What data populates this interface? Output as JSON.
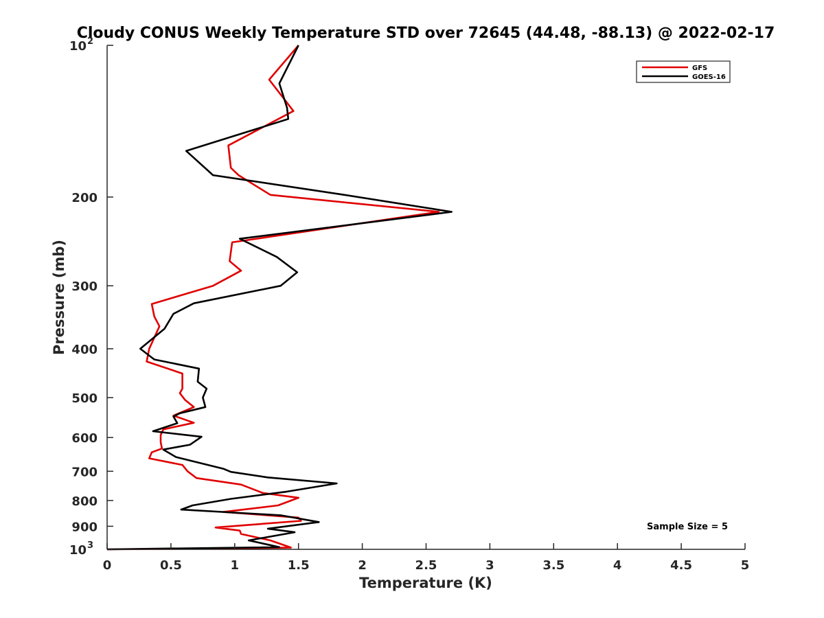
{
  "chart_data": {
    "type": "line",
    "title": "Cloudy CONUS Weekly Temperature STD over 72645 (44.48, -88.13) @ 2022-02-17",
    "xlabel": "Temperature (K)",
    "ylabel": "Pressure (mb)",
    "xlim": [
      0,
      5
    ],
    "ylim": [
      100,
      1000
    ],
    "yscale": "log",
    "y_reversed": true,
    "xticks": [
      "0",
      "0.5",
      "1",
      "1.5",
      "2",
      "2.5",
      "3",
      "3.5",
      "4",
      "4.5",
      "5"
    ],
    "xtick_values": [
      0,
      0.5,
      1,
      1.5,
      2,
      2.5,
      3,
      3.5,
      4,
      4.5,
      5
    ],
    "yticks": [
      {
        "value": 100,
        "base": "10",
        "exp": "2"
      },
      {
        "value": 200,
        "label": "200"
      },
      {
        "value": 300,
        "label": "300"
      },
      {
        "value": 400,
        "label": "400"
      },
      {
        "value": 500,
        "label": "500"
      },
      {
        "value": 600,
        "label": "600"
      },
      {
        "value": 700,
        "label": "700"
      },
      {
        "value": 800,
        "label": "800"
      },
      {
        "value": 900,
        "label": "900"
      },
      {
        "value": 1000,
        "base": "10",
        "exp": "3"
      }
    ],
    "grid": false,
    "legend_position": "top-right",
    "annotation": "Sample Size = 5",
    "series": [
      {
        "name": "GFS",
        "color": "#e00000",
        "points": [
          [
            1.5,
            100
          ],
          [
            1.27,
            117
          ],
          [
            1.46,
            135
          ],
          [
            0.95,
            158
          ],
          [
            0.97,
            175
          ],
          [
            1.03,
            181
          ],
          [
            1.28,
            198
          ],
          [
            2.6,
            214
          ],
          [
            0.98,
            246
          ],
          [
            0.96,
            268
          ],
          [
            1.05,
            280
          ],
          [
            0.83,
            300
          ],
          [
            0.35,
            326
          ],
          [
            0.37,
            345
          ],
          [
            0.41,
            361
          ],
          [
            0.33,
            400
          ],
          [
            0.31,
            424
          ],
          [
            0.59,
            448
          ],
          [
            0.59,
            480
          ],
          [
            0.57,
            490
          ],
          [
            0.61,
            505
          ],
          [
            0.68,
            522
          ],
          [
            0.52,
            543
          ],
          [
            0.68,
            561
          ],
          [
            0.44,
            578
          ],
          [
            0.42,
            593
          ],
          [
            0.42,
            613
          ],
          [
            0.43,
            631
          ],
          [
            0.35,
            642
          ],
          [
            0.33,
            660
          ],
          [
            0.59,
            680
          ],
          [
            0.63,
            700
          ],
          [
            0.7,
            722
          ],
          [
            1.05,
            744
          ],
          [
            1.22,
            773
          ],
          [
            1.5,
            790
          ],
          [
            1.34,
            818
          ],
          [
            0.91,
            843
          ],
          [
            1.5,
            865
          ],
          [
            1.52,
            878
          ],
          [
            0.85,
            905
          ],
          [
            1.04,
            918
          ],
          [
            1.05,
            932
          ],
          [
            1.28,
            960
          ],
          [
            1.44,
            992
          ],
          [
            1.0,
            996
          ],
          [
            0.0,
            1000
          ]
        ]
      },
      {
        "name": "GOES-16",
        "color": "#000000",
        "points": [
          [
            1.5,
            100
          ],
          [
            1.35,
            119
          ],
          [
            1.41,
            133
          ],
          [
            1.42,
            140
          ],
          [
            0.62,
            162
          ],
          [
            0.83,
            181
          ],
          [
            1.86,
            198
          ],
          [
            2.7,
            214
          ],
          [
            1.04,
            242
          ],
          [
            1.33,
            263
          ],
          [
            1.49,
            282
          ],
          [
            1.36,
            300
          ],
          [
            0.68,
            325
          ],
          [
            0.52,
            341
          ],
          [
            0.45,
            365
          ],
          [
            0.26,
            400
          ],
          [
            0.37,
            420
          ],
          [
            0.72,
            438
          ],
          [
            0.71,
            465
          ],
          [
            0.78,
            480
          ],
          [
            0.75,
            500
          ],
          [
            0.77,
            522
          ],
          [
            0.57,
            537
          ],
          [
            0.52,
            545
          ],
          [
            0.55,
            562
          ],
          [
            0.36,
            583
          ],
          [
            0.74,
            598
          ],
          [
            0.65,
            620
          ],
          [
            0.44,
            634
          ],
          [
            0.54,
            656
          ],
          [
            0.91,
            692
          ],
          [
            0.97,
            702
          ],
          [
            1.26,
            720
          ],
          [
            1.8,
            740
          ],
          [
            1.41,
            768
          ],
          [
            0.97,
            794
          ],
          [
            0.67,
            818
          ],
          [
            0.58,
            834
          ],
          [
            1.36,
            856
          ],
          [
            1.66,
            883
          ],
          [
            1.26,
            910
          ],
          [
            1.47,
            925
          ],
          [
            1.11,
            960
          ],
          [
            1.35,
            990
          ],
          [
            0.0,
            1000
          ]
        ]
      }
    ]
  }
}
